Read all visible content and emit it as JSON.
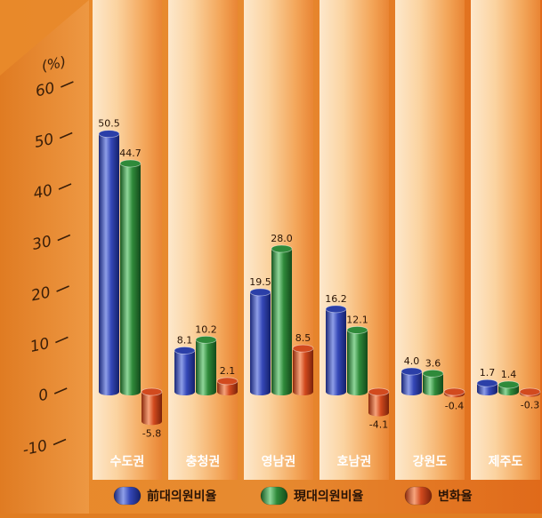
{
  "chart_data": {
    "type": "bar",
    "ylabel": "(%)",
    "ylim": [
      -10,
      60
    ],
    "yticks": [
      -10,
      0,
      10,
      20,
      30,
      40,
      50,
      60
    ],
    "categories": [
      "수도권",
      "충청권",
      "영남권",
      "호남권",
      "강원도",
      "제주도"
    ],
    "series": [
      {
        "name": "前대의원비율",
        "values": [
          50.5,
          8.1,
          19.5,
          16.2,
          4.0,
          1.7
        ],
        "labels": [
          "50.5",
          "8.1",
          "19.5",
          "16.2",
          "4.0",
          "1.7"
        ],
        "color": "#2b3fa8"
      },
      {
        "name": "現대의원비율",
        "values": [
          44.7,
          10.2,
          28.0,
          12.1,
          3.6,
          1.4
        ],
        "labels": [
          "44.7",
          "10.2",
          "28.0",
          "12.1",
          "3.6",
          "1.4"
        ],
        "color": "#2f8a3a"
      },
      {
        "name": "변화율",
        "values": [
          -5.8,
          2.1,
          8.5,
          -4.1,
          -0.4,
          -0.3
        ],
        "labels": [
          "-5.8",
          "2.1",
          "8.5",
          "-4.1",
          "-0.4",
          "-0.3"
        ],
        "color": "#d24a1e"
      }
    ],
    "legend": "bottom"
  }
}
